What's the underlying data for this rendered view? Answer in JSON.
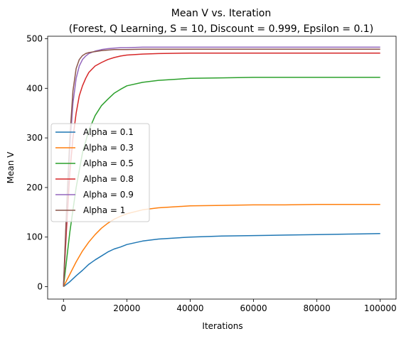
{
  "chart_data": {
    "type": "line",
    "title_line1": "Mean V vs. Iteration",
    "title_line2": "(Forest, Q Learning, S = 10, Discount = 0.999, Epsilon = 0.1)",
    "xlabel": "Iterations",
    "ylabel": "Mean V",
    "xlim": [
      -5000,
      105000
    ],
    "ylim": [
      -25,
      505
    ],
    "xticks": [
      0,
      20000,
      40000,
      60000,
      80000,
      100000
    ],
    "yticks": [
      0,
      100,
      200,
      300,
      400,
      500
    ],
    "grid": false,
    "legend_position": "center-left",
    "series": [
      {
        "name": "Alpha = 0.1",
        "color": "#1f77b4",
        "x": [
          0,
          2000,
          4000,
          6000,
          8000,
          10000,
          12000,
          14000,
          16000,
          18000,
          20000,
          25000,
          30000,
          40000,
          50000,
          60000,
          70000,
          80000,
          90000,
          100000
        ],
        "y": [
          0,
          10,
          22,
          33,
          45,
          54,
          62,
          70,
          76,
          80,
          85,
          92,
          96,
          100,
          102,
          103,
          104,
          105,
          106,
          107
        ]
      },
      {
        "name": "Alpha = 0.3",
        "color": "#ff7f0e",
        "x": [
          0,
          2000,
          4000,
          6000,
          8000,
          10000,
          12000,
          14000,
          16000,
          18000,
          20000,
          25000,
          30000,
          40000,
          50000,
          60000,
          70000,
          80000,
          90000,
          100000
        ],
        "y": [
          0,
          25,
          50,
          72,
          90,
          105,
          118,
          128,
          136,
          142,
          147,
          155,
          159,
          163,
          164,
          165,
          165,
          166,
          166,
          166
        ]
      },
      {
        "name": "Alpha = 0.5",
        "color": "#2ca02c",
        "x": [
          0,
          2000,
          4000,
          6000,
          8000,
          10000,
          12000,
          14000,
          16000,
          18000,
          20000,
          25000,
          30000,
          40000,
          50000,
          60000,
          70000,
          80000,
          90000,
          100000
        ],
        "y": [
          0,
          110,
          200,
          270,
          315,
          345,
          365,
          378,
          390,
          398,
          405,
          412,
          416,
          420,
          421,
          422,
          422,
          422,
          422,
          422
        ]
      },
      {
        "name": "Alpha = 0.8",
        "color": "#d62728",
        "x": [
          0,
          1000,
          2000,
          3000,
          4000,
          5000,
          6000,
          7000,
          8000,
          10000,
          12000,
          14000,
          16000,
          18000,
          20000,
          25000,
          30000,
          40000,
          60000,
          80000,
          100000
        ],
        "y": [
          0,
          120,
          230,
          300,
          350,
          385,
          405,
          420,
          432,
          445,
          452,
          458,
          462,
          465,
          467,
          469,
          470,
          471,
          471,
          471,
          471
        ]
      },
      {
        "name": "Alpha = 0.9",
        "color": "#9467bd",
        "x": [
          0,
          1000,
          2000,
          3000,
          4000,
          5000,
          6000,
          7000,
          8000,
          10000,
          12000,
          14000,
          16000,
          18000,
          20000,
          25000,
          30000,
          40000,
          60000,
          80000,
          100000
        ],
        "y": [
          0,
          150,
          280,
          370,
          420,
          445,
          458,
          465,
          470,
          475,
          478,
          480,
          481,
          482,
          482,
          483,
          483,
          483,
          483,
          483,
          483
        ]
      },
      {
        "name": "Alpha = 1",
        "color": "#8c564b",
        "x": [
          0,
          1000,
          2000,
          3000,
          4000,
          5000,
          6000,
          7000,
          8000,
          10000,
          12000,
          14000,
          16000,
          18000,
          20000,
          25000,
          30000,
          40000,
          60000,
          80000,
          100000
        ],
        "y": [
          0,
          160,
          300,
          395,
          440,
          458,
          466,
          470,
          472,
          474,
          476,
          477,
          478,
          478,
          478,
          479,
          479,
          479,
          479,
          479,
          479
        ]
      }
    ]
  }
}
